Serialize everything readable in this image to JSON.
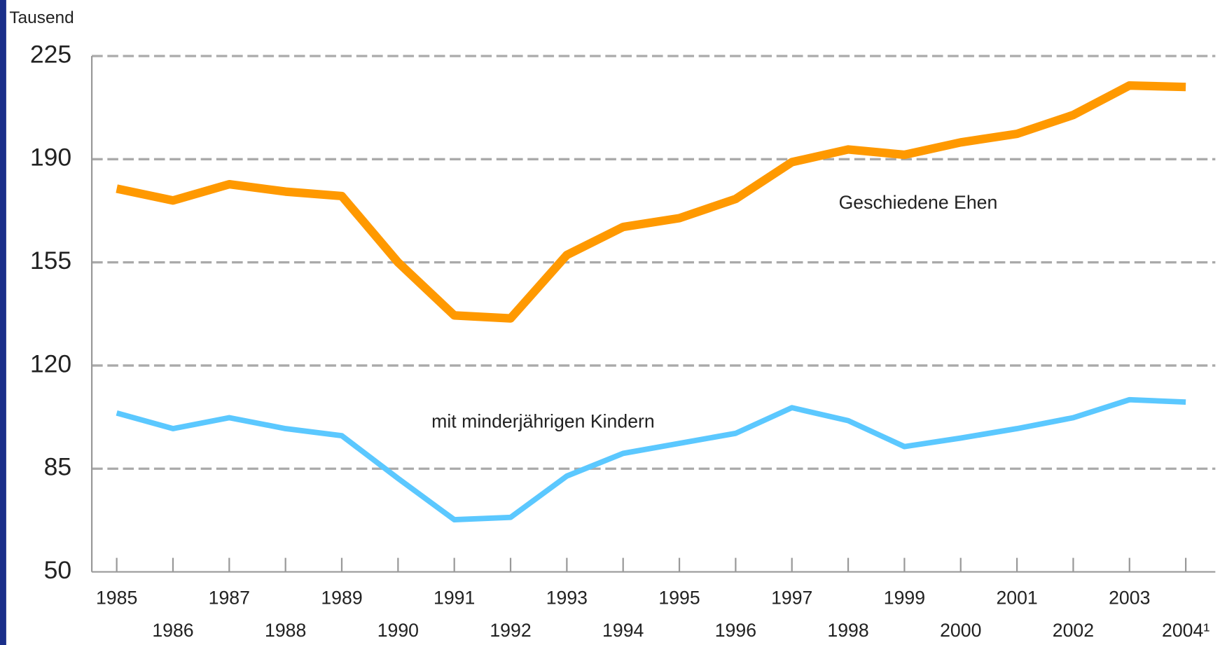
{
  "chart_data": {
    "type": "line",
    "y_unit_label": "Tausend",
    "categories": [
      "1985",
      "1986",
      "1987",
      "1988",
      "1989",
      "1990",
      "1991",
      "1992",
      "1993",
      "1994",
      "1995",
      "1996",
      "1997",
      "1998",
      "1999",
      "2000",
      "2001",
      "2002",
      "2003",
      "2004¹"
    ],
    "series": [
      {
        "name": "Geschiedene Ehen",
        "color": "#ff9900",
        "values": [
          180,
          176,
          181.5,
          179,
          177.5,
          155,
          137,
          136,
          157.5,
          167,
          170,
          176.5,
          189,
          193.3,
          191.5,
          195.7,
          198.6,
          205,
          215,
          214.5
        ]
      },
      {
        "name": "mit minderjährigen Kindern",
        "color": "#5bc8ff",
        "values": [
          103.9,
          98.6,
          102.3,
          98.6,
          96.2,
          81.7,
          67.7,
          68.5,
          82.5,
          90.2,
          93.6,
          97,
          105.7,
          101.3,
          92.5,
          95.4,
          98.6,
          102.3,
          108.4,
          107.6
        ]
      }
    ],
    "ylim": [
      50,
      225
    ],
    "yticks": [
      50,
      85,
      120,
      155,
      190,
      225
    ],
    "grid": true
  }
}
